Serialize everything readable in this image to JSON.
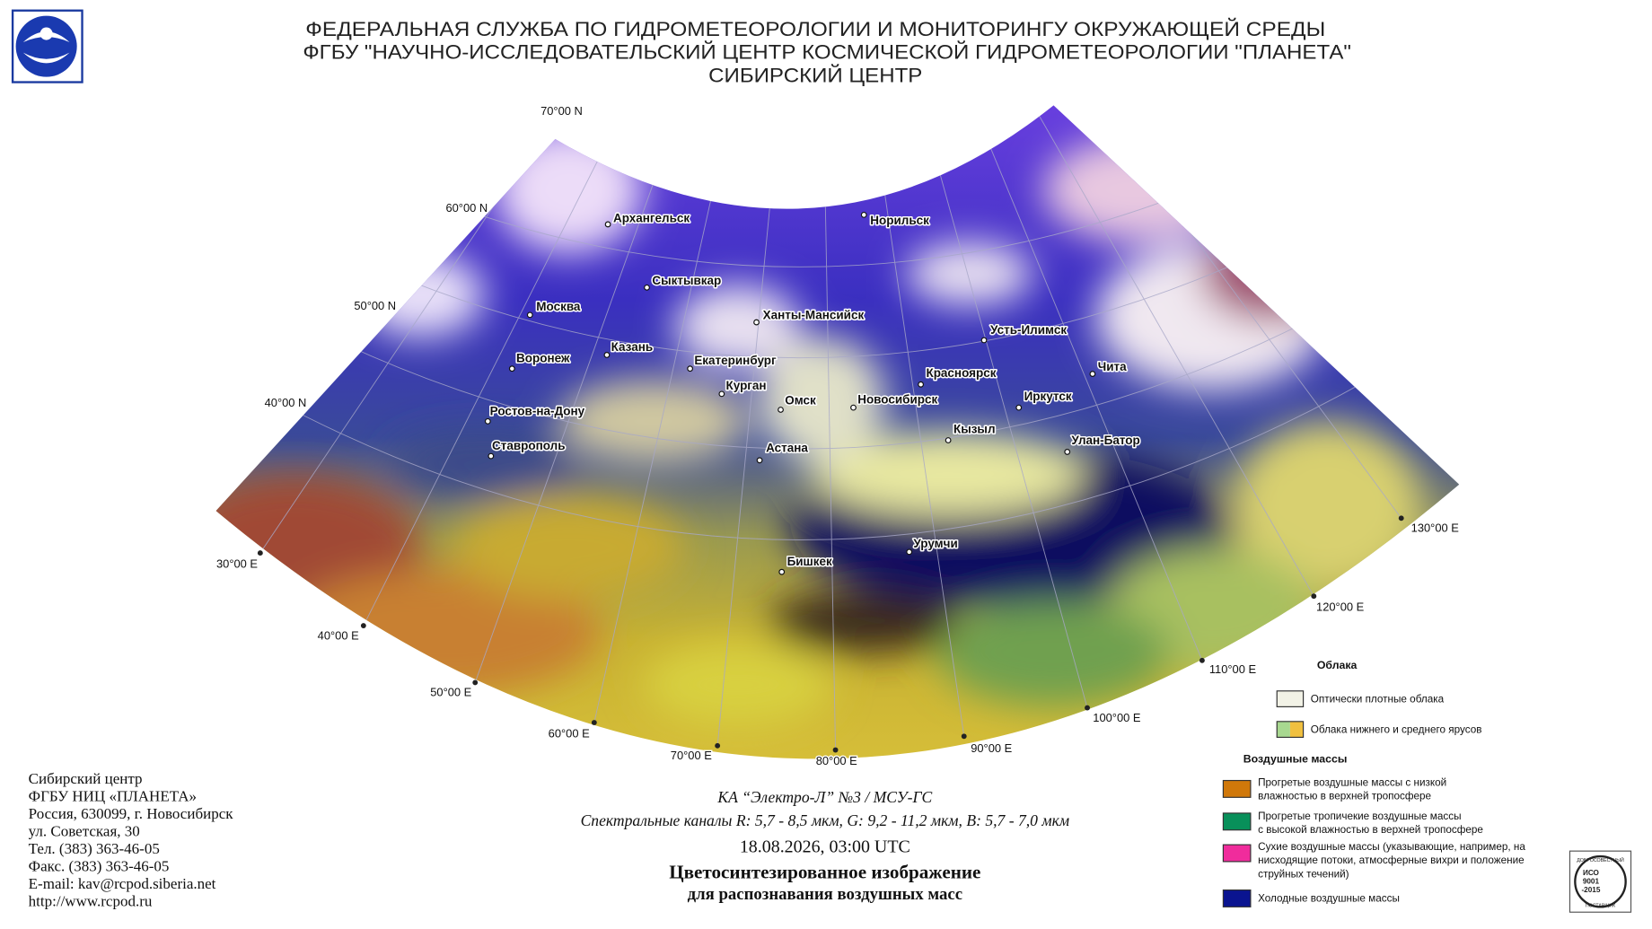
{
  "header": {
    "lines": [
      "ФЕДЕРАЛЬНАЯ СЛУЖБА ПО ГИДРОМЕТЕОРОЛОГИИ И МОНИТОРИНГУ ОКРУЖАЮЩЕЙ СРЕДЫ",
      "ФГБУ \"НАУЧНО-ИССЛЕДОВАТЕЛЬСКИЙ ЦЕНТР КОСМИЧЕСКОЙ ГИДРОМЕТЕОРОЛОГИИ \"ПЛАНЕТА\"",
      "СИБИРСКИЙ ЦЕНТР"
    ]
  },
  "map": {
    "latitude_labels": [
      "70°00 N",
      "60°00 N",
      "50°00 N",
      "40°00 N"
    ],
    "longitude_labels": [
      "30°00 E",
      "40°00 E",
      "50°00 E",
      "60°00 E",
      "70°00 E",
      "80°00 E",
      "90°00 E",
      "100°00 E",
      "110°00 E",
      "120°00 E",
      "130°00 E"
    ],
    "cities": [
      "Архангельск",
      "Сыктывкар",
      "Москва",
      "Казань",
      "Воронеж",
      "Ханты-Мансийск",
      "Норильск",
      "Екатеринбург",
      "Курган",
      "Омск",
      "Новосибирск",
      "Красноярск",
      "Усть-Илимск",
      "Чита",
      "Иркутск",
      "Кызыл",
      "Улан-Батор",
      "Ростов-на-Дону",
      "Ставрополь",
      "Астана",
      "Урумчи",
      "Бишкек"
    ]
  },
  "legend": {
    "clouds": {
      "title": "Облака",
      "items": [
        [
          "Оптически плотные облака"
        ],
        [
          "Облака нижнего и среднего ярусов"
        ]
      ]
    },
    "air_masses": {
      "title": "Воздушные массы",
      "items": [
        [
          "Прогретые воздушные массы с низкой",
          "влажностью в верхней тропосфере"
        ],
        [
          "Прогретые тропичекие воздушные массы",
          "с высокой влажностью в верхней тропосфере"
        ],
        [
          "Сухие воздушные массы (указывающие, например, на",
          "нисходящие потоки, атмосферные вихри и положение",
          "струйных течений)"
        ],
        [
          "Холодные воздушные массы"
        ]
      ]
    }
  },
  "caption": {
    "satellite": "КА “Электро-Л” №3 / МСУ-ГС",
    "channels": "Спектральные каналы R: 5,7 - 8,5 мкм, G: 9,2 - 11,2 мкм, B: 5,7 - 7,0 мкм",
    "datetime": "18.08.2026, 03:00 UTC",
    "title_lines": [
      "Цветосинтезированное изображение",
      "для распознавания воздушных масс"
    ]
  },
  "contacts": [
    "Сибирский центр",
    "ФГБУ НИЦ «ПЛАНЕТА»",
    "Россия, 630099, г. Новосибирск",
    "ул. Советская, 30",
    "Тел. (383) 363-46-05",
    "Факс. (383) 363-46-05",
    "E-mail: kav@rcpod.siberia.net",
    "http://www.rcpod.ru"
  ],
  "badge": {
    "top": "ДОБРОСОВЕСТНЫЙ",
    "iso": "ИСО",
    "num": "9001",
    "year": "-2015",
    "bottom": "ПОСТАВЩИК"
  }
}
